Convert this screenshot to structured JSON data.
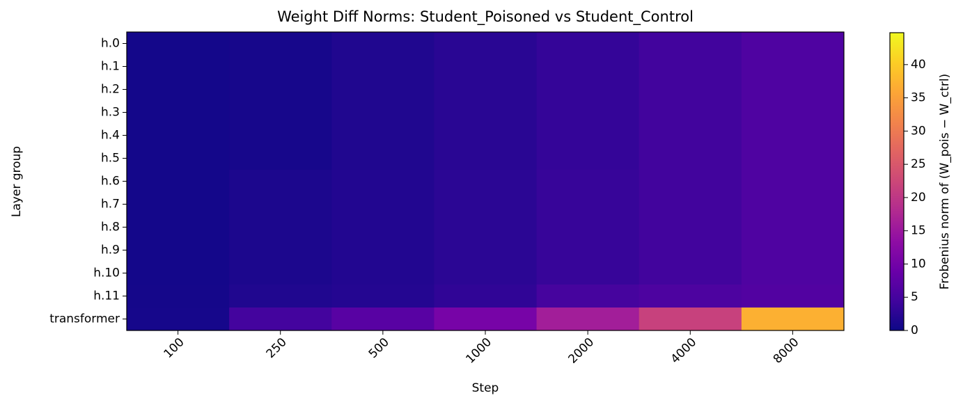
{
  "chart_data": {
    "type": "heatmap",
    "title": "Weight Diff Norms: Student_Poisoned vs Student_Control",
    "x_label": "Step",
    "y_label": "Layer group",
    "colorbar_label": "Frobenius norm of (W_pois − W_ctrl)",
    "x_categories": [
      "100",
      "250",
      "500",
      "1000",
      "2000",
      "4000",
      "8000"
    ],
    "y_categories": [
      "h.0",
      "h.1",
      "h.2",
      "h.3",
      "h.4",
      "h.5",
      "h.6",
      "h.7",
      "h.8",
      "h.9",
      "h.10",
      "h.11",
      "transformer"
    ],
    "values": [
      [
        0.6,
        0.9,
        1.6,
        2.4,
        3.4,
        4.6,
        6.0
      ],
      [
        0.6,
        0.9,
        1.6,
        2.4,
        3.4,
        4.6,
        6.0
      ],
      [
        0.6,
        0.9,
        1.6,
        2.4,
        3.4,
        4.6,
        6.0
      ],
      [
        0.6,
        0.9,
        1.6,
        2.4,
        3.4,
        4.6,
        6.0
      ],
      [
        0.6,
        0.9,
        1.6,
        2.4,
        3.4,
        4.6,
        6.0
      ],
      [
        0.6,
        0.9,
        1.6,
        2.4,
        3.4,
        4.6,
        6.0
      ],
      [
        0.6,
        1.3,
        1.8,
        2.6,
        3.6,
        4.6,
        6.0
      ],
      [
        0.6,
        1.3,
        1.8,
        2.6,
        3.6,
        4.6,
        6.0
      ],
      [
        0.6,
        1.3,
        1.8,
        2.6,
        3.6,
        4.6,
        6.0
      ],
      [
        0.6,
        1.3,
        1.8,
        2.6,
        3.6,
        4.6,
        6.0
      ],
      [
        0.6,
        1.3,
        1.8,
        2.6,
        3.6,
        4.6,
        6.0
      ],
      [
        0.7,
        1.6,
        2.0,
        3.0,
        5.0,
        5.8,
        6.3
      ],
      [
        0.8,
        4.8,
        7.0,
        10.5,
        16.0,
        21.5,
        37.0
      ]
    ],
    "clim": [
      0,
      44.8
    ],
    "cticks": [
      0,
      5,
      10,
      15,
      20,
      25,
      30,
      35,
      40
    ],
    "colormap": "plasma"
  }
}
